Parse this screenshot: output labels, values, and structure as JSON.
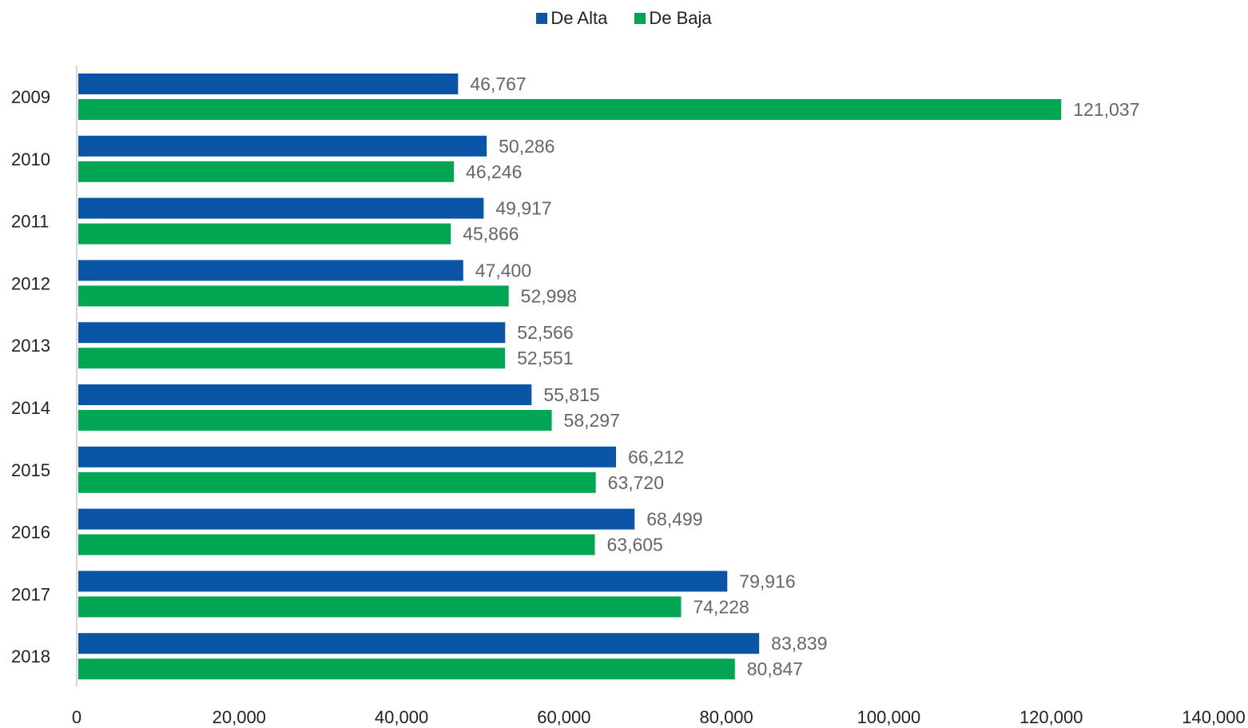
{
  "chart_data": {
    "type": "bar",
    "orientation": "horizontal",
    "categories": [
      "2009",
      "2010",
      "2011",
      "2012",
      "2013",
      "2014",
      "2015",
      "2016",
      "2017",
      "2018"
    ],
    "series": [
      {
        "name": "De Alta",
        "color": "#0B55A7",
        "values": [
          46767,
          50286,
          49917,
          47400,
          52566,
          55815,
          66212,
          68499,
          79916,
          83839
        ],
        "labels": [
          "46,767",
          "50,286",
          "49,917",
          "47,400",
          "52,566",
          "55,815",
          "66,212",
          "68,499",
          "79,916",
          "83,839"
        ]
      },
      {
        "name": "De Baja",
        "color": "#00A651",
        "values": [
          121037,
          46246,
          45866,
          52998,
          52551,
          58297,
          63720,
          63605,
          74228,
          80847
        ],
        "labels": [
          "121,037",
          "46,246",
          "45,866",
          "52,998",
          "52,551",
          "58,297",
          "63,720",
          "63,605",
          "74,228",
          "80,847"
        ]
      }
    ],
    "xlim": [
      0,
      140000
    ],
    "xticks": [
      0,
      20000,
      40000,
      60000,
      80000,
      100000,
      120000,
      140000
    ],
    "xtick_labels": [
      "0",
      "20,000",
      "40,000",
      "60,000",
      "80,000",
      "100,000",
      "120,000",
      "140,000"
    ],
    "grid": false,
    "legend_position": "top-center"
  }
}
